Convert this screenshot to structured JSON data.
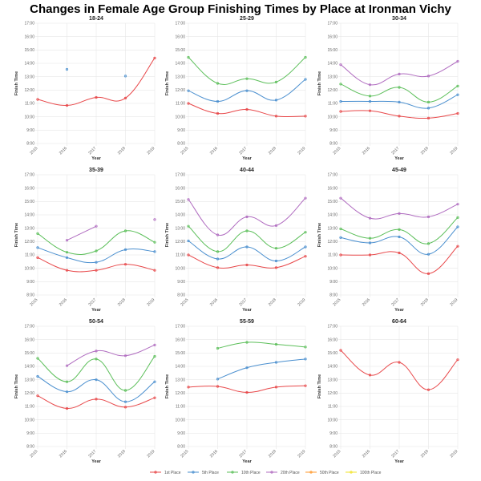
{
  "title": "Changes in Female Age Group Finishing Times by Place at Ironman Vichy",
  "chart_data": {
    "type": "line",
    "title": "Changes in Female Age Group Finishing Times by Place at Ironman Vichy",
    "xlabel": "Year",
    "ylabel": "Finish Time",
    "x": [
      "2015",
      "2016",
      "2017",
      "2018",
      "2019"
    ],
    "ylim": [
      8,
      17
    ],
    "y_ticks": [
      "8:00",
      "9:00",
      "10:00",
      "11:00",
      "12:00",
      "13:00",
      "14:00",
      "15:00",
      "16:00",
      "17:00"
    ],
    "y_units": "hours",
    "grid": true,
    "legend_placement": "bottom",
    "legend": [
      {
        "name": "1st Place",
        "color": "#e8484a"
      },
      {
        "name": "5th Place",
        "color": "#4a8fcf"
      },
      {
        "name": "10th Place",
        "color": "#5cbf5a"
      },
      {
        "name": "20th Place",
        "color": "#b06cc0"
      },
      {
        "name": "50th Place",
        "color": "#ff9a2e"
      },
      {
        "name": "100th Place",
        "color": "#f2e32a"
      }
    ],
    "panels": [
      {
        "title": "18-24",
        "series": [
          {
            "name": "1st Place",
            "values": [
              11.3,
              10.85,
              11.45,
              11.4,
              14.4
            ]
          },
          {
            "name": "5th Place",
            "values": [
              null,
              13.55,
              null,
              13.05,
              null
            ]
          }
        ]
      },
      {
        "title": "25-29",
        "series": [
          {
            "name": "1st Place",
            "values": [
              11.0,
              10.25,
              10.55,
              10.05,
              10.05
            ]
          },
          {
            "name": "5th Place",
            "values": [
              11.95,
              11.15,
              11.95,
              11.25,
              12.8
            ]
          },
          {
            "name": "10th Place",
            "values": [
              14.45,
              12.5,
              12.85,
              12.6,
              14.45
            ]
          }
        ]
      },
      {
        "title": "30-34",
        "series": [
          {
            "name": "1st Place",
            "values": [
              10.4,
              10.45,
              10.05,
              9.9,
              10.25
            ]
          },
          {
            "name": "5th Place",
            "values": [
              11.15,
              11.15,
              11.1,
              10.65,
              11.65
            ]
          },
          {
            "name": "10th Place",
            "values": [
              12.45,
              11.55,
              12.2,
              11.1,
              12.3
            ]
          },
          {
            "name": "20th Place",
            "values": [
              13.9,
              12.4,
              13.2,
              13.05,
              14.15
            ]
          }
        ]
      },
      {
        "title": "35-39",
        "series": [
          {
            "name": "1st Place",
            "values": [
              10.8,
              9.85,
              9.85,
              10.3,
              9.85
            ]
          },
          {
            "name": "5th Place",
            "values": [
              11.55,
              10.8,
              10.45,
              11.4,
              11.25
            ]
          },
          {
            "name": "10th Place",
            "values": [
              12.6,
              11.2,
              11.3,
              12.8,
              11.95
            ]
          },
          {
            "name": "20th Place",
            "values": [
              null,
              12.1,
              13.15,
              null,
              13.65
            ]
          }
        ]
      },
      {
        "title": "40-44",
        "series": [
          {
            "name": "1st Place",
            "values": [
              11.0,
              10.05,
              10.25,
              10.05,
              10.9
            ]
          },
          {
            "name": "5th Place",
            "values": [
              12.05,
              10.7,
              11.6,
              10.55,
              11.6
            ]
          },
          {
            "name": "10th Place",
            "values": [
              13.15,
              11.25,
              12.8,
              11.5,
              12.7
            ]
          },
          {
            "name": "20th Place",
            "values": [
              15.15,
              12.5,
              13.85,
              13.2,
              15.25
            ]
          }
        ]
      },
      {
        "title": "45-49",
        "series": [
          {
            "name": "1st Place",
            "values": [
              11.0,
              11.0,
              11.15,
              9.6,
              11.65
            ]
          },
          {
            "name": "5th Place",
            "values": [
              12.3,
              11.9,
              12.35,
              11.05,
              13.1
            ]
          },
          {
            "name": "10th Place",
            "values": [
              12.95,
              12.25,
              12.9,
              11.85,
              13.8
            ]
          },
          {
            "name": "20th Place",
            "values": [
              15.25,
              13.75,
              14.1,
              13.85,
              14.8
            ]
          }
        ]
      },
      {
        "title": "50-54",
        "series": [
          {
            "name": "1st Place",
            "values": [
              11.8,
              10.85,
              11.55,
              10.95,
              11.65
            ]
          },
          {
            "name": "5th Place",
            "values": [
              13.25,
              12.1,
              13.0,
              11.35,
              12.85
            ]
          },
          {
            "name": "10th Place",
            "values": [
              14.6,
              12.85,
              14.55,
              12.2,
              14.75
            ]
          },
          {
            "name": "20th Place",
            "values": [
              null,
              14.05,
              15.15,
              14.8,
              15.6
            ]
          }
        ]
      },
      {
        "title": "55-59",
        "series": [
          {
            "name": "1st Place",
            "values": [
              12.45,
              12.5,
              12.05,
              12.45,
              12.55
            ]
          },
          {
            "name": "5th Place",
            "values": [
              null,
              13.05,
              13.9,
              14.3,
              14.55
            ]
          },
          {
            "name": "10th Place",
            "values": [
              null,
              15.35,
              15.8,
              15.65,
              15.45
            ]
          }
        ]
      },
      {
        "title": "60-64",
        "series": [
          {
            "name": "1st Place",
            "values": [
              15.2,
              13.35,
              14.3,
              12.25,
              14.5
            ]
          }
        ]
      }
    ]
  }
}
